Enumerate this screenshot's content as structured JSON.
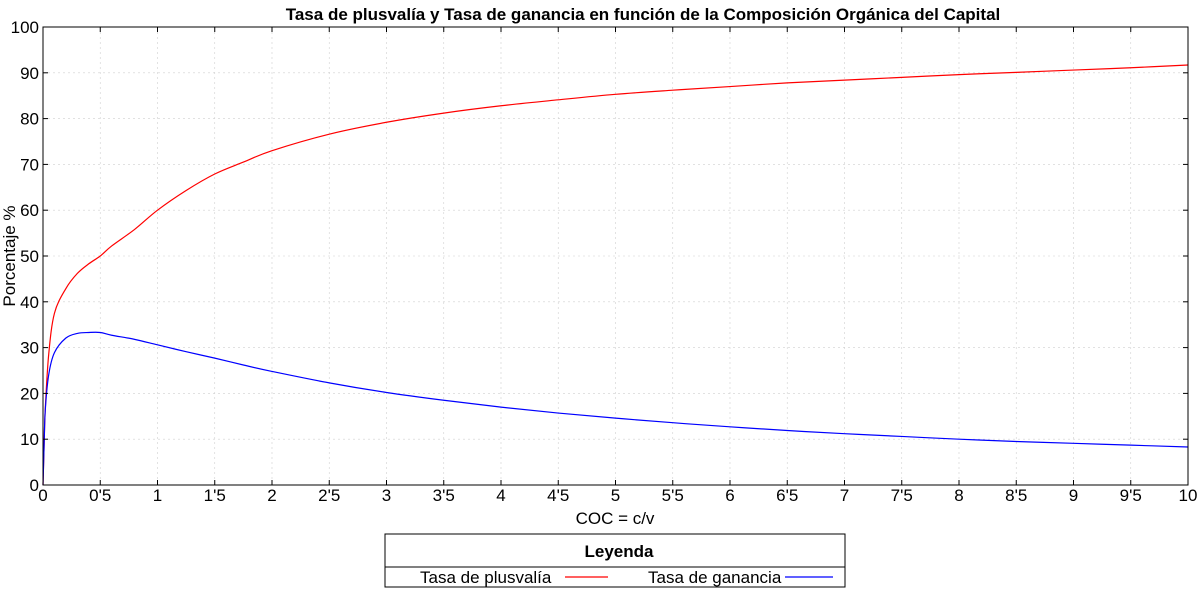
{
  "chart_data": {
    "type": "line",
    "title": "Tasa de plusvalía y Tasa de ganancia en función de la Composición Orgánica del Capital",
    "xlabel": "COC = c/v",
    "ylabel": "Porcentaje %",
    "xlim": [
      0,
      10
    ],
    "ylim": [
      0,
      100
    ],
    "x_ticks": [
      0,
      0.5,
      1,
      1.5,
      2,
      2.5,
      3,
      3.5,
      4,
      4.5,
      5,
      5.5,
      6,
      6.5,
      7,
      7.5,
      8,
      8.5,
      9,
      9.5,
      10
    ],
    "x_tick_labels": [
      "0",
      "0'5",
      "1",
      "1'5",
      "2",
      "2'5",
      "3",
      "3'5",
      "4",
      "4'5",
      "5",
      "5'5",
      "6",
      "6'5",
      "7",
      "7'5",
      "8",
      "8'5",
      "9",
      "9'5",
      "10"
    ],
    "y_ticks": [
      0,
      10,
      20,
      30,
      40,
      50,
      60,
      70,
      80,
      90,
      100
    ],
    "y_tick_labels": [
      "0",
      "10",
      "20",
      "30",
      "40",
      "50",
      "60",
      "70",
      "80",
      "90",
      "100"
    ],
    "grid": true,
    "legend": {
      "title": "Leyenda",
      "placement": "bottom"
    },
    "series": [
      {
        "name": "Tasa de plusvalía",
        "color": "#ff0000",
        "x": [
          0,
          0.01,
          0.02,
          0.05,
          0.1,
          0.2,
          0.3,
          0.4,
          0.5,
          0.6,
          0.8,
          1,
          1.25,
          1.5,
          1.75,
          2,
          2.5,
          3,
          3.5,
          4,
          4.5,
          5,
          5.5,
          6,
          6.5,
          7,
          7.5,
          8,
          8.5,
          9,
          9.5,
          10
        ],
        "y": [
          0,
          9.1,
          16.7,
          28.6,
          37.5,
          42.9,
          46.2,
          48.3,
          50.0,
          52.2,
          55.8,
          60.0,
          64.3,
          67.9,
          70.5,
          73.0,
          76.6,
          79.2,
          81.2,
          82.8,
          84.1,
          85.3,
          86.2,
          87.0,
          87.8,
          88.4,
          89.0,
          89.6,
          90.1,
          90.6,
          91.1,
          91.7
        ]
      },
      {
        "name": "Tasa de ganancia",
        "color": "#0000ff",
        "x": [
          0,
          0.01,
          0.02,
          0.05,
          0.1,
          0.2,
          0.3,
          0.4,
          0.5,
          0.6,
          0.8,
          1,
          1.25,
          1.5,
          1.75,
          2,
          2.5,
          3,
          3.5,
          4,
          4.5,
          5,
          5.5,
          6,
          6.5,
          7,
          7.5,
          8,
          8.5,
          9,
          9.5,
          10
        ],
        "y": [
          0,
          9.0,
          16.4,
          24.1,
          28.9,
          32.1,
          33.1,
          33.3,
          33.3,
          32.7,
          31.8,
          30.6,
          29.1,
          27.7,
          26.2,
          24.8,
          22.3,
          20.2,
          18.5,
          17.0,
          15.7,
          14.6,
          13.6,
          12.7,
          11.9,
          11.2,
          10.6,
          10.0,
          9.5,
          9.1,
          8.7,
          8.3
        ]
      }
    ]
  }
}
